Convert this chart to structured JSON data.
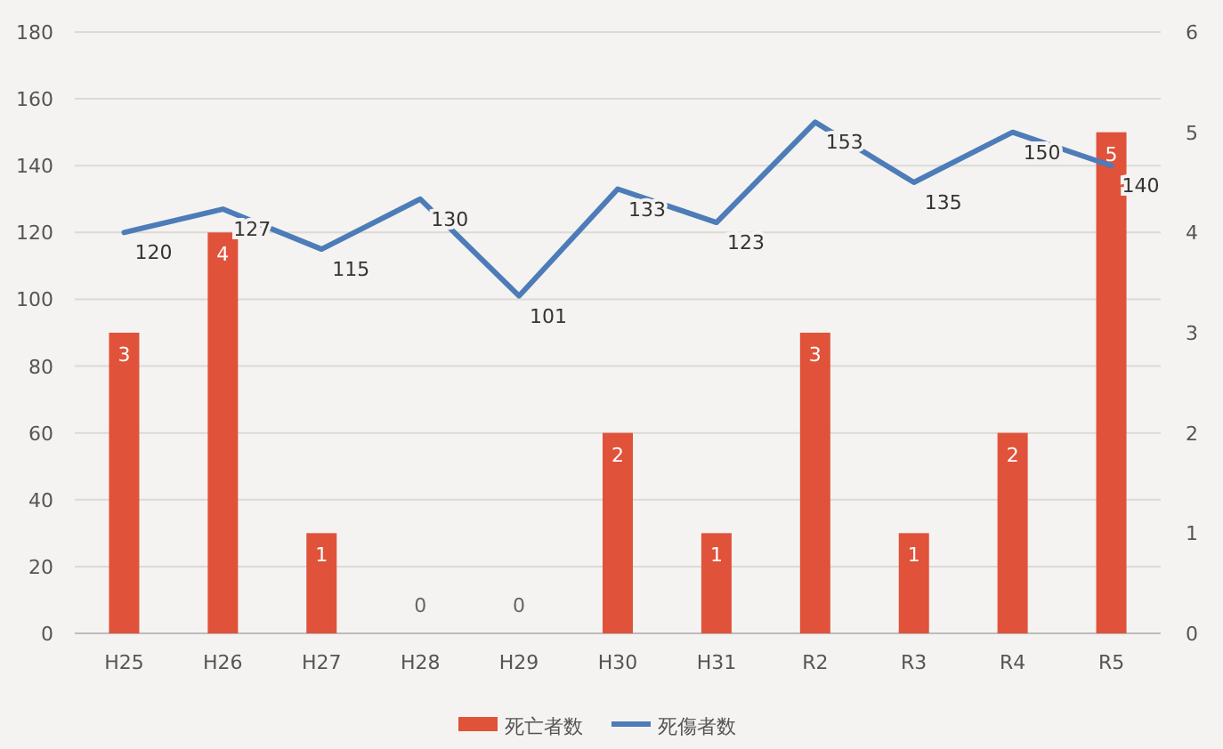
{
  "chart_data": {
    "type": "bar",
    "categories": [
      "H25",
      "H26",
      "H27",
      "H28",
      "H29",
      "H30",
      "H31",
      "R2",
      "R3",
      "R4",
      "R5"
    ],
    "series": [
      {
        "name": "死亡者数",
        "axis": "y2",
        "color": "#e0523a",
        "values": [
          3,
          4,
          1,
          0,
          0,
          2,
          1,
          3,
          1,
          2,
          5
        ]
      },
      {
        "name": "死傷者数",
        "type": "line",
        "axis": "y",
        "color": "#4d7cb8",
        "values": [
          120,
          127,
          115,
          130,
          101,
          133,
          123,
          153,
          135,
          150,
          140
        ]
      }
    ],
    "ylim": [
      0,
      180
    ],
    "yticks": [
      0,
      20,
      40,
      60,
      80,
      100,
      120,
      140,
      160,
      180
    ],
    "y2lim": [
      0,
      6
    ],
    "y2ticks": [
      0,
      1,
      2,
      3,
      4,
      5,
      6
    ],
    "grid": "y",
    "legend": "bottom",
    "data_labels": true,
    "marker": "none",
    "line_style": "solid"
  }
}
